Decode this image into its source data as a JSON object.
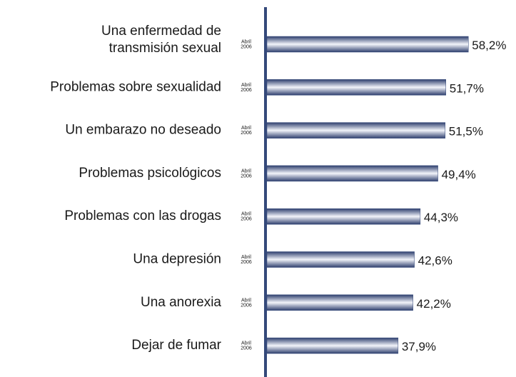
{
  "chart_data": {
    "type": "hbar",
    "categories": [
      "Una enfermedad de\ntransmisión sexual",
      "Problemas sobre sexualidad",
      "Un embarazo no deseado",
      "Problemas psicológicos",
      "Problemas con las drogas",
      "Una depresión",
      "Una anorexia",
      "Dejar de fumar"
    ],
    "series": [
      {
        "name": "Abril\n2006",
        "color": "#34497a",
        "values": [
          58.2,
          51.7,
          51.5,
          49.4,
          44.3,
          42.6,
          42.2,
          37.9
        ],
        "value_labels": [
          "58,2%",
          "51,7%",
          "51,5%",
          "49,4%",
          "44,3%",
          "42,6%",
          "42,2%",
          "37,9%"
        ]
      }
    ]
  }
}
